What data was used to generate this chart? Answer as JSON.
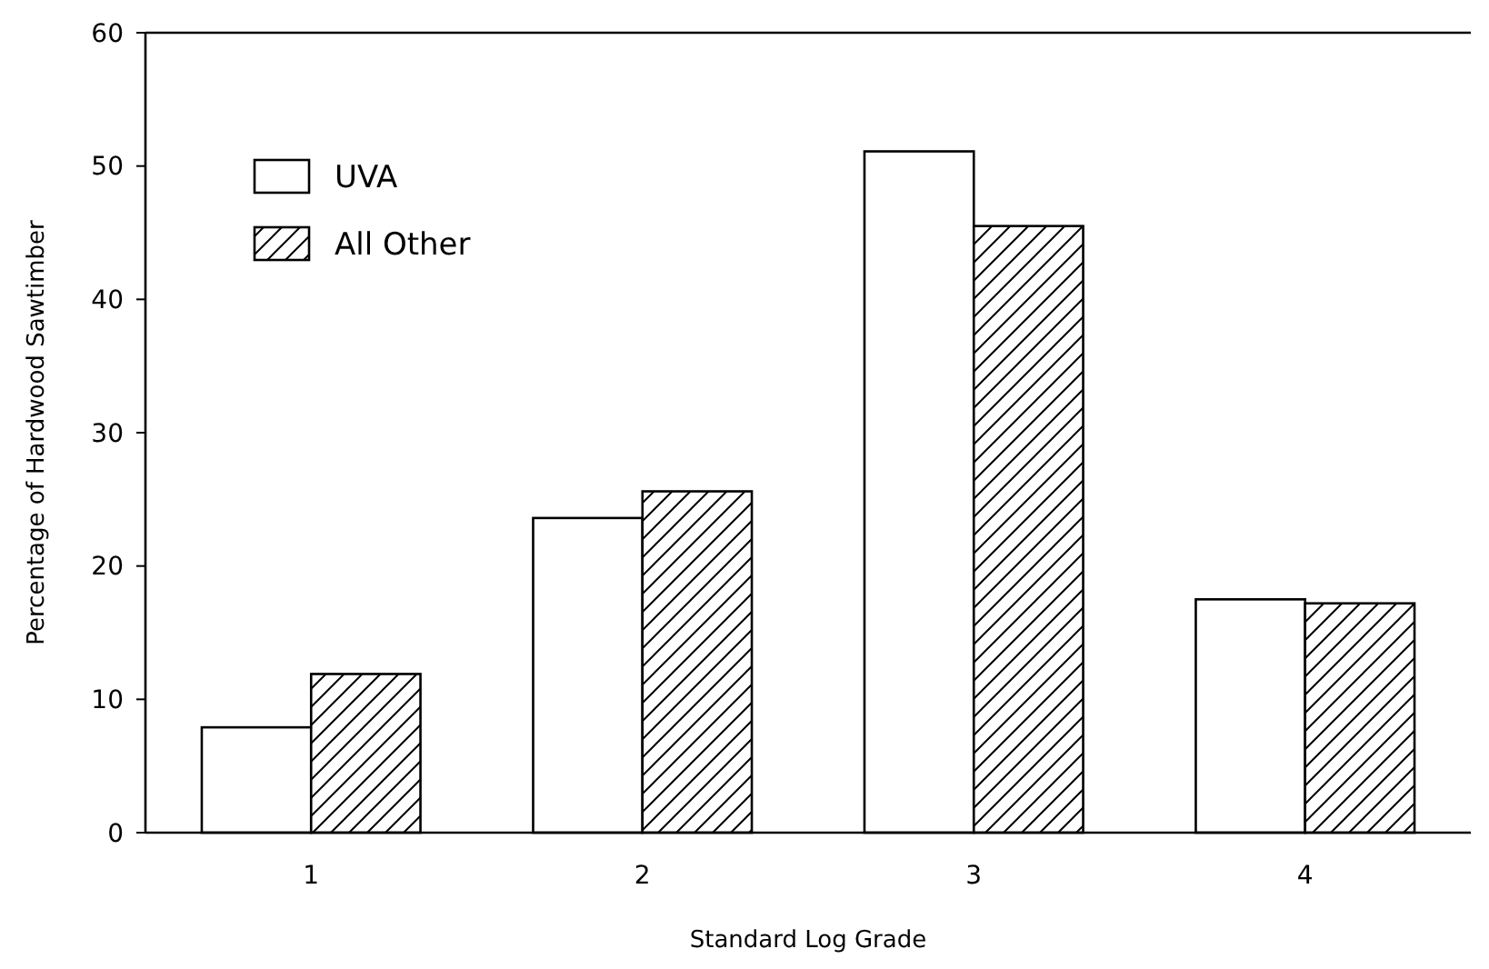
{
  "chart_data": {
    "type": "bar",
    "xlabel": "Standard Log Grade",
    "ylabel": "Percentage of Hardwood Sawtimber",
    "categories": [
      "1",
      "2",
      "3",
      "4"
    ],
    "series": [
      {
        "name": "UVA",
        "color": "#ffffff",
        "values": [
          7.9,
          23.6,
          51.1,
          17.5
        ]
      },
      {
        "name": "All Other",
        "color": "#000000",
        "values": [
          11.9,
          25.6,
          45.5,
          17.2
        ]
      }
    ],
    "ylim": [
      0,
      60
    ],
    "yticks": [
      0,
      10,
      20,
      30,
      40,
      50,
      60
    ],
    "grid": false,
    "legend": "top left"
  }
}
